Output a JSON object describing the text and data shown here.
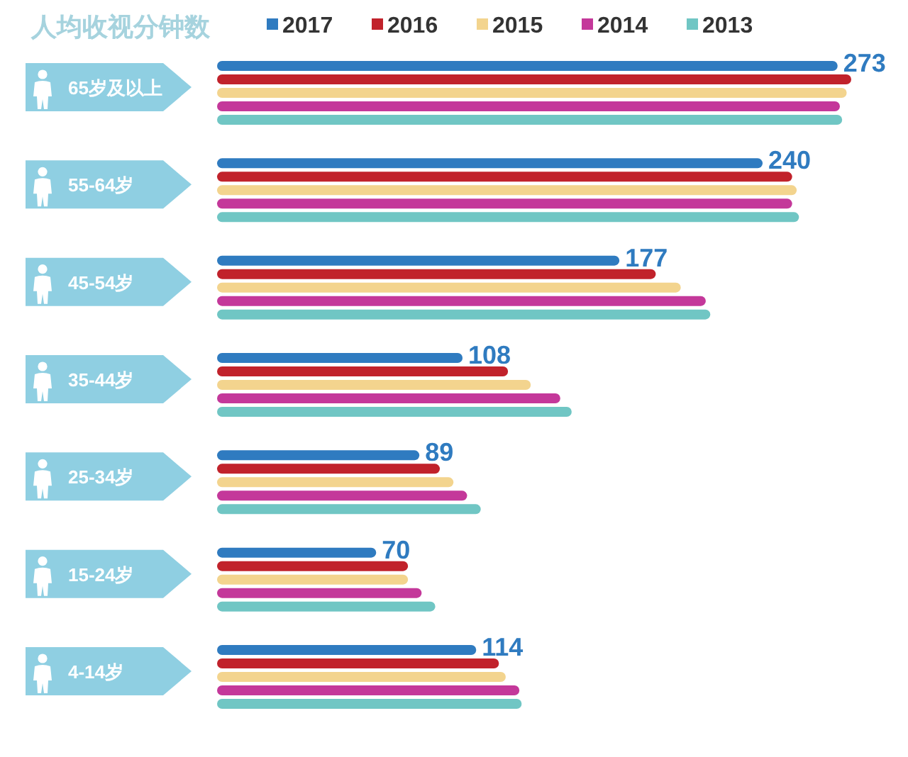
{
  "chart_data": {
    "type": "bar",
    "orientation": "horizontal",
    "title": "人均收视分钟数",
    "categories": [
      "65岁及以上",
      "55-64岁",
      "45-54岁",
      "35-44岁",
      "25-34岁",
      "15-24岁",
      "4-14岁"
    ],
    "series": [
      {
        "name": "2017",
        "color": "#2f7bc0",
        "values": [
          273,
          240,
          177,
          108,
          89,
          70,
          114
        ],
        "value_labels": [
          "273",
          "240",
          "177",
          "108",
          "89",
          "70",
          "114"
        ]
      },
      {
        "name": "2016",
        "color": "#c1222b",
        "values": [
          279,
          253,
          193,
          128,
          98,
          84,
          124
        ]
      },
      {
        "name": "2015",
        "color": "#f3d48e",
        "values": [
          277,
          255,
          204,
          138,
          104,
          84,
          127
        ]
      },
      {
        "name": "2014",
        "color": "#c4389a",
        "values": [
          274,
          253,
          215,
          151,
          110,
          90,
          133
        ]
      },
      {
        "name": "2013",
        "color": "#70c6c4",
        "values": [
          275,
          256,
          217,
          156,
          116,
          96,
          134
        ]
      }
    ],
    "legend": "top",
    "tick_labels": "y"
  }
}
